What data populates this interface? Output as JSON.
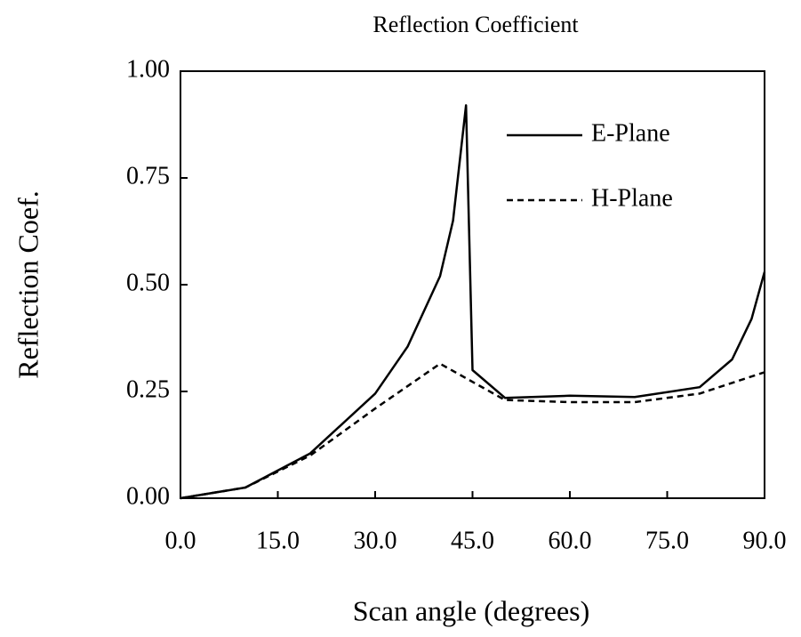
{
  "chart_data": {
    "type": "line",
    "title": "Reflection Coefficient",
    "x_label": "Scan angle (degrees)",
    "y_label": "Reflection Coef.",
    "xlim": [
      0,
      90
    ],
    "ylim": [
      0,
      1
    ],
    "xticks": [
      {
        "value": 0,
        "label": "0.0"
      },
      {
        "value": 15,
        "label": "15.0"
      },
      {
        "value": 30,
        "label": "30.0"
      },
      {
        "value": 45,
        "label": "45.0"
      },
      {
        "value": 60,
        "label": "60.0"
      },
      {
        "value": 75,
        "label": "75.0"
      },
      {
        "value": 90,
        "label": "90.0"
      }
    ],
    "yticks": [
      {
        "value": 0,
        "label": "0.00"
      },
      {
        "value": 0.25,
        "label": "0.25"
      },
      {
        "value": 0.5,
        "label": "0.50"
      },
      {
        "value": 0.75,
        "label": "0.75"
      },
      {
        "value": 1,
        "label": "1.00"
      }
    ],
    "legend": "upper right",
    "grid": false,
    "series": [
      {
        "name": "E-Plane",
        "color": "#000000",
        "linestyle": "solid",
        "x": [
          0,
          10,
          20,
          30,
          35,
          40,
          42,
          44,
          45,
          50,
          60,
          70,
          80,
          85,
          88,
          90
        ],
        "values": [
          0,
          0.025,
          0.105,
          0.245,
          0.355,
          0.52,
          0.65,
          0.92,
          0.3,
          0.235,
          0.24,
          0.237,
          0.26,
          0.325,
          0.42,
          0.53
        ]
      },
      {
        "name": "H-Plane",
        "color": "#000000",
        "linestyle": "dashed",
        "x": [
          0,
          10,
          20,
          30,
          40,
          50,
          60,
          70,
          80,
          90
        ],
        "values": [
          0,
          0.025,
          0.1,
          0.21,
          0.315,
          0.23,
          0.225,
          0.225,
          0.245,
          0.295
        ]
      }
    ]
  }
}
